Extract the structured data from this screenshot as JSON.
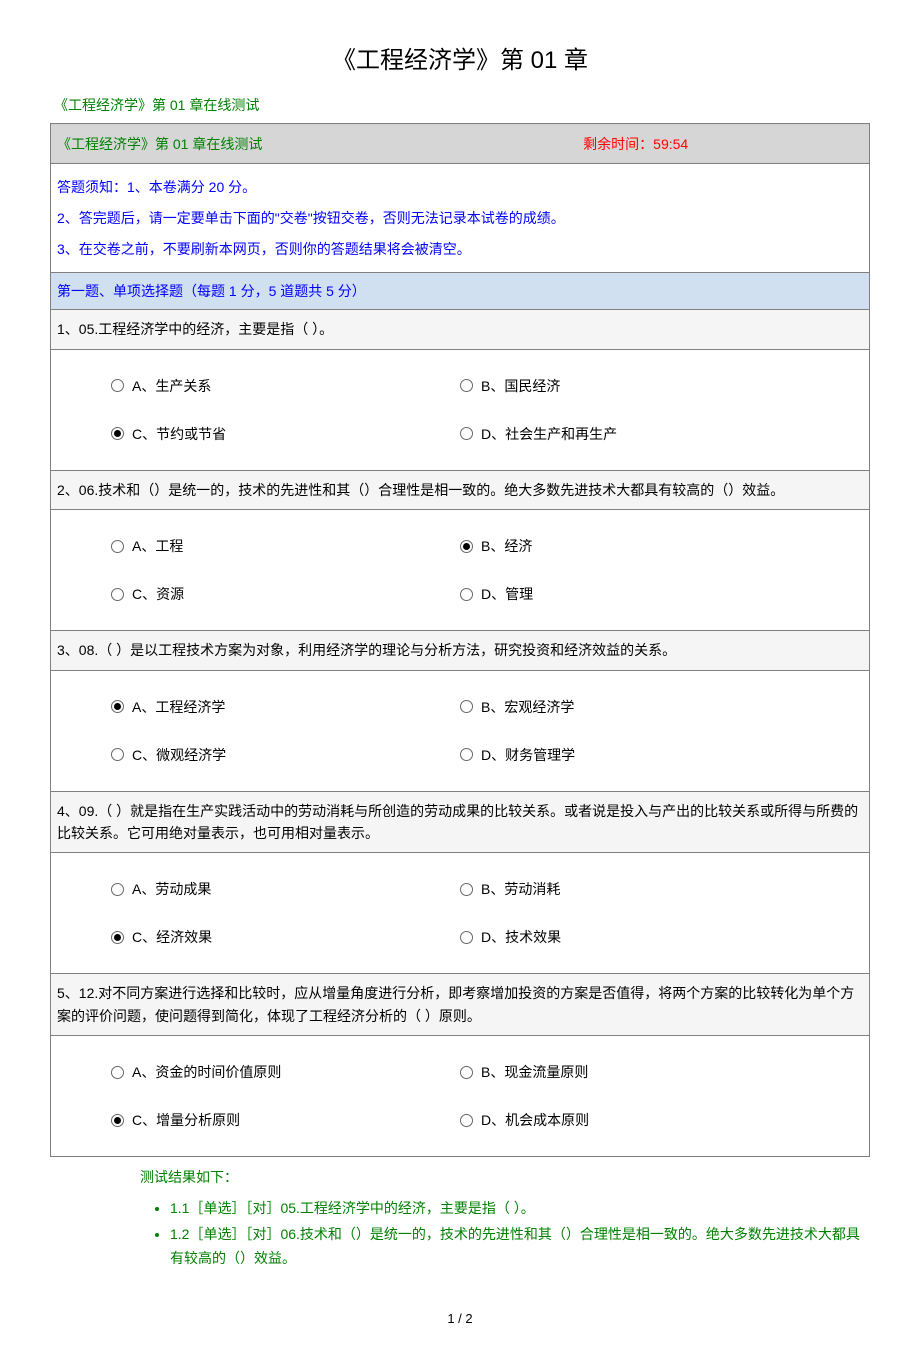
{
  "main_title": "《工程经济学》第 01 章",
  "subtitle": "《工程经济学》第 01 章在线测试",
  "header": {
    "title": "《工程经济学》第 01 章在线测试",
    "timer": "剩余时间：59:54"
  },
  "instructions": "答题须知：1、本卷满分 20 分。\n2、答完题后，请一定要单击下面的\"交卷\"按钮交卷，否则无法记录本试卷的成绩。\n3、在交卷之前，不要刷新本网页，否则你的答题结果将会被清空。",
  "section_header": "第一题、单项选择题（每题 1 分，5 道题共 5 分）",
  "questions": [
    {
      "stem": "1、05.工程经济学中的经济，主要是指（ ）。",
      "options": [
        "A、生产关系",
        "B、国民经济",
        "C、节约或节省",
        "D、社会生产和再生产"
      ],
      "selected": 2
    },
    {
      "stem": "2、06.技术和（）是统一的，技术的先进性和其（）合理性是相一致的。绝大多数先进技术大都具有较高的（）效益。",
      "options": [
        "A、工程",
        "B、经济",
        "C、资源",
        "D、管理"
      ],
      "selected": 1
    },
    {
      "stem": "3、08.（ ）是以工程技术方案为对象，利用经济学的理论与分析方法，研究投资和经济效益的关系。",
      "options": [
        "A、工程经济学",
        "B、宏观经济学",
        "C、微观经济学",
        "D、财务管理学"
      ],
      "selected": 0
    },
    {
      "stem": "4、09.（ ）就是指在生产实践活动中的劳动消耗与所创造的劳动成果的比较关系。或者说是投入与产出的比较关系或所得与所费的比较关系。它可用绝对量表示，也可用相对量表示。",
      "options": [
        "A、劳动成果",
        "B、劳动消耗",
        "C、经济效果",
        "D、技术效果"
      ],
      "selected": 2
    },
    {
      "stem": "5、12.对不同方案进行选择和比较时，应从增量角度进行分析，即考察增加投资的方案是否值得，将两个方案的比较转化为单个方案的评价问题，使问题得到简化，体现了工程经济分析的（ ）原则。",
      "options": [
        "A、资金的时间价值原则",
        "B、现金流量原则",
        "C、增量分析原则",
        "D、机会成本原则"
      ],
      "selected": 2
    }
  ],
  "result_title": "测试结果如下：",
  "results": [
    "1.1［单选］［对］05.工程经济学中的经济，主要是指（ ）。",
    "1.2［单选］［对］06.技术和（）是统一的，技术的先进性和其（）合理性是相一致的。绝大多数先进技术大都具有较高的（）效益。"
  ],
  "page_num": "1 / 2"
}
